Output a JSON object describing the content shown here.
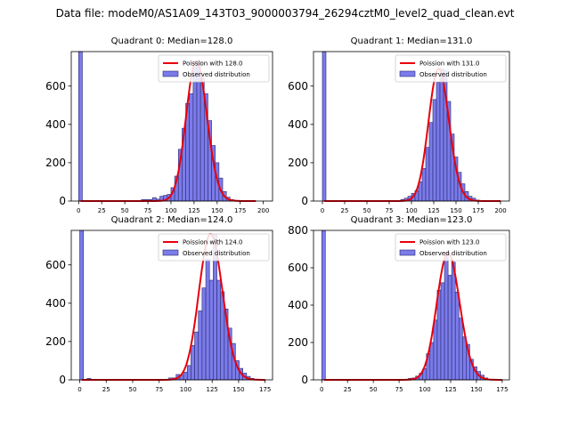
{
  "figure": {
    "suptitle": "Data file: modeM0/AS1A09_143T03_9000003794_26294cztM0_level2_quad_clean.evt"
  },
  "colors": {
    "bar_fill": "#7b7bea",
    "bar_edge": "#2a2a6e",
    "fit_line": "#e8000b",
    "axis": "#000000"
  },
  "chart_data": [
    {
      "type": "bar",
      "title": "Quadrant 0: Median=128.0",
      "xlabel": "",
      "ylabel": "",
      "xlim": [
        -8,
        210
      ],
      "ylim": [
        0,
        780
      ],
      "xticks": [
        "0",
        "25",
        "50",
        "75",
        "100",
        "125",
        "150",
        "175",
        "200"
      ],
      "yticks": [
        "0",
        "200",
        "400",
        "600"
      ],
      "bin_width": 4,
      "bins": [
        {
          "x": 0,
          "y": 780
        },
        {
          "x": 68,
          "y": 8
        },
        {
          "x": 72,
          "y": 8
        },
        {
          "x": 76,
          "y": 8
        },
        {
          "x": 80,
          "y": 18
        },
        {
          "x": 84,
          "y": 10
        },
        {
          "x": 88,
          "y": 25
        },
        {
          "x": 92,
          "y": 30
        },
        {
          "x": 96,
          "y": 35
        },
        {
          "x": 100,
          "y": 70
        },
        {
          "x": 104,
          "y": 130
        },
        {
          "x": 108,
          "y": 270
        },
        {
          "x": 112,
          "y": 380
        },
        {
          "x": 116,
          "y": 510
        },
        {
          "x": 120,
          "y": 560
        },
        {
          "x": 124,
          "y": 700
        },
        {
          "x": 128,
          "y": 730
        },
        {
          "x": 132,
          "y": 640
        },
        {
          "x": 136,
          "y": 560
        },
        {
          "x": 140,
          "y": 420
        },
        {
          "x": 144,
          "y": 290
        },
        {
          "x": 148,
          "y": 200
        },
        {
          "x": 152,
          "y": 120
        },
        {
          "x": 156,
          "y": 50
        },
        {
          "x": 160,
          "y": 20
        },
        {
          "x": 164,
          "y": 8
        },
        {
          "x": 168,
          "y": 4
        }
      ],
      "fit": {
        "mean": 128.0,
        "xmax": 192
      },
      "legend": [
        "Poission with 128.0",
        "Observed distribution"
      ]
    },
    {
      "type": "bar",
      "title": "Quadrant 1: Median=131.0",
      "xlabel": "",
      "ylabel": "",
      "xlim": [
        -10,
        210
      ],
      "ylim": [
        0,
        780
      ],
      "xticks": [
        "0",
        "25",
        "50",
        "75",
        "100",
        "125",
        "150",
        "175",
        "200"
      ],
      "yticks": [
        "0",
        "200",
        "400",
        "600"
      ],
      "bin_width": 4,
      "bins": [
        {
          "x": 0,
          "y": 780
        },
        {
          "x": 88,
          "y": 8
        },
        {
          "x": 92,
          "y": 15
        },
        {
          "x": 96,
          "y": 25
        },
        {
          "x": 100,
          "y": 40
        },
        {
          "x": 104,
          "y": 55
        },
        {
          "x": 108,
          "y": 100
        },
        {
          "x": 112,
          "y": 170
        },
        {
          "x": 116,
          "y": 280
        },
        {
          "x": 120,
          "y": 410
        },
        {
          "x": 124,
          "y": 530
        },
        {
          "x": 128,
          "y": 620
        },
        {
          "x": 132,
          "y": 690
        },
        {
          "x": 136,
          "y": 680
        },
        {
          "x": 140,
          "y": 520
        },
        {
          "x": 144,
          "y": 350
        },
        {
          "x": 148,
          "y": 230
        },
        {
          "x": 152,
          "y": 150
        },
        {
          "x": 156,
          "y": 90
        },
        {
          "x": 160,
          "y": 50
        },
        {
          "x": 164,
          "y": 25
        },
        {
          "x": 168,
          "y": 15
        },
        {
          "x": 172,
          "y": 5
        }
      ],
      "fit": {
        "mean": 131.0,
        "xmax": 200
      },
      "legend": [
        "Poission with 131.0",
        "Observed distribution"
      ]
    },
    {
      "type": "bar",
      "title": "Quadrant 2: Median=124.0",
      "xlabel": "",
      "ylabel": "",
      "xlim": [
        -8,
        182
      ],
      "ylim": [
        0,
        780
      ],
      "xticks": [
        "0",
        "25",
        "50",
        "75",
        "100",
        "125",
        "150",
        "175"
      ],
      "yticks": [
        "0",
        "200",
        "400",
        "600"
      ],
      "bin_width": 3.5,
      "bins": [
        {
          "x": 0,
          "y": 780
        },
        {
          "x": 7,
          "y": 8
        },
        {
          "x": 84,
          "y": 10
        },
        {
          "x": 87.5,
          "y": 10
        },
        {
          "x": 91,
          "y": 28
        },
        {
          "x": 94.5,
          "y": 25
        },
        {
          "x": 98,
          "y": 40
        },
        {
          "x": 101.5,
          "y": 75
        },
        {
          "x": 105,
          "y": 180
        },
        {
          "x": 108.5,
          "y": 250
        },
        {
          "x": 112,
          "y": 360
        },
        {
          "x": 115.5,
          "y": 480
        },
        {
          "x": 119,
          "y": 630
        },
        {
          "x": 122.5,
          "y": 520
        },
        {
          "x": 126,
          "y": 760
        },
        {
          "x": 129.5,
          "y": 520
        },
        {
          "x": 133,
          "y": 460
        },
        {
          "x": 136.5,
          "y": 370
        },
        {
          "x": 140,
          "y": 270
        },
        {
          "x": 143.5,
          "y": 190
        },
        {
          "x": 147,
          "y": 100
        },
        {
          "x": 150.5,
          "y": 60
        },
        {
          "x": 154,
          "y": 35
        },
        {
          "x": 157.5,
          "y": 18
        },
        {
          "x": 161,
          "y": 8
        }
      ],
      "fit": {
        "mean": 124.0,
        "xmax": 175
      },
      "legend": [
        "Poission with 124.0",
        "Observed distribution"
      ]
    },
    {
      "type": "bar",
      "title": "Quadrant 3: Median=123.0",
      "xlabel": "",
      "ylabel": "",
      "xlim": [
        -8,
        182
      ],
      "ylim": [
        0,
        800
      ],
      "xticks": [
        "0",
        "25",
        "50",
        "75",
        "100",
        "125",
        "150",
        "175"
      ],
      "yticks": [
        "0",
        "200",
        "400",
        "600",
        "800"
      ],
      "bin_width": 3.5,
      "bins": [
        {
          "x": 0,
          "y": 800
        },
        {
          "x": 84,
          "y": 8
        },
        {
          "x": 87.5,
          "y": 10
        },
        {
          "x": 91,
          "y": 20
        },
        {
          "x": 94.5,
          "y": 35
        },
        {
          "x": 98,
          "y": 60
        },
        {
          "x": 101.5,
          "y": 140
        },
        {
          "x": 105,
          "y": 200
        },
        {
          "x": 108.5,
          "y": 320
        },
        {
          "x": 112,
          "y": 480
        },
        {
          "x": 115.5,
          "y": 520
        },
        {
          "x": 119,
          "y": 680
        },
        {
          "x": 122.5,
          "y": 560
        },
        {
          "x": 126,
          "y": 630
        },
        {
          "x": 129.5,
          "y": 470
        },
        {
          "x": 133,
          "y": 330
        },
        {
          "x": 136.5,
          "y": 230
        },
        {
          "x": 140,
          "y": 190
        },
        {
          "x": 143.5,
          "y": 110
        },
        {
          "x": 147,
          "y": 70
        },
        {
          "x": 150.5,
          "y": 45
        },
        {
          "x": 154,
          "y": 25
        },
        {
          "x": 157.5,
          "y": 10
        }
      ],
      "fit": {
        "mean": 123.0,
        "xmax": 175
      },
      "legend": [
        "Poission with 123.0",
        "Observed distribution"
      ]
    }
  ]
}
